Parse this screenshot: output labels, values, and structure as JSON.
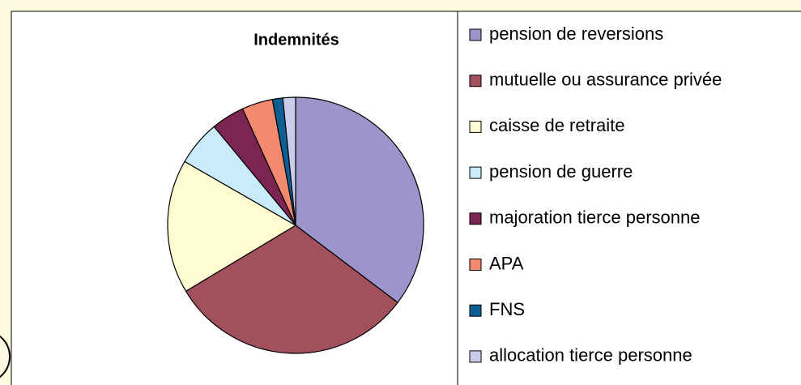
{
  "chart_data": {
    "type": "pie",
    "title": "Indemnités",
    "categories": [
      "pension de reversions",
      "mutuelle ou assurance privée",
      "caisse de retraite",
      "pension de guerre",
      "majoration tierce personne",
      "APA",
      "FNS",
      "allocation tierce personne"
    ],
    "values": [
      35.3,
      31.1,
      16.9,
      5.7,
      4.2,
      3.9,
      1.3,
      1.6
    ],
    "colors": [
      "#9b95cb",
      "#a3505e",
      "#fffcd2",
      "#c9ebfb",
      "#7c2552",
      "#f28a70",
      "#0c5f94",
      "#cbcbeb"
    ],
    "legend": "right"
  }
}
